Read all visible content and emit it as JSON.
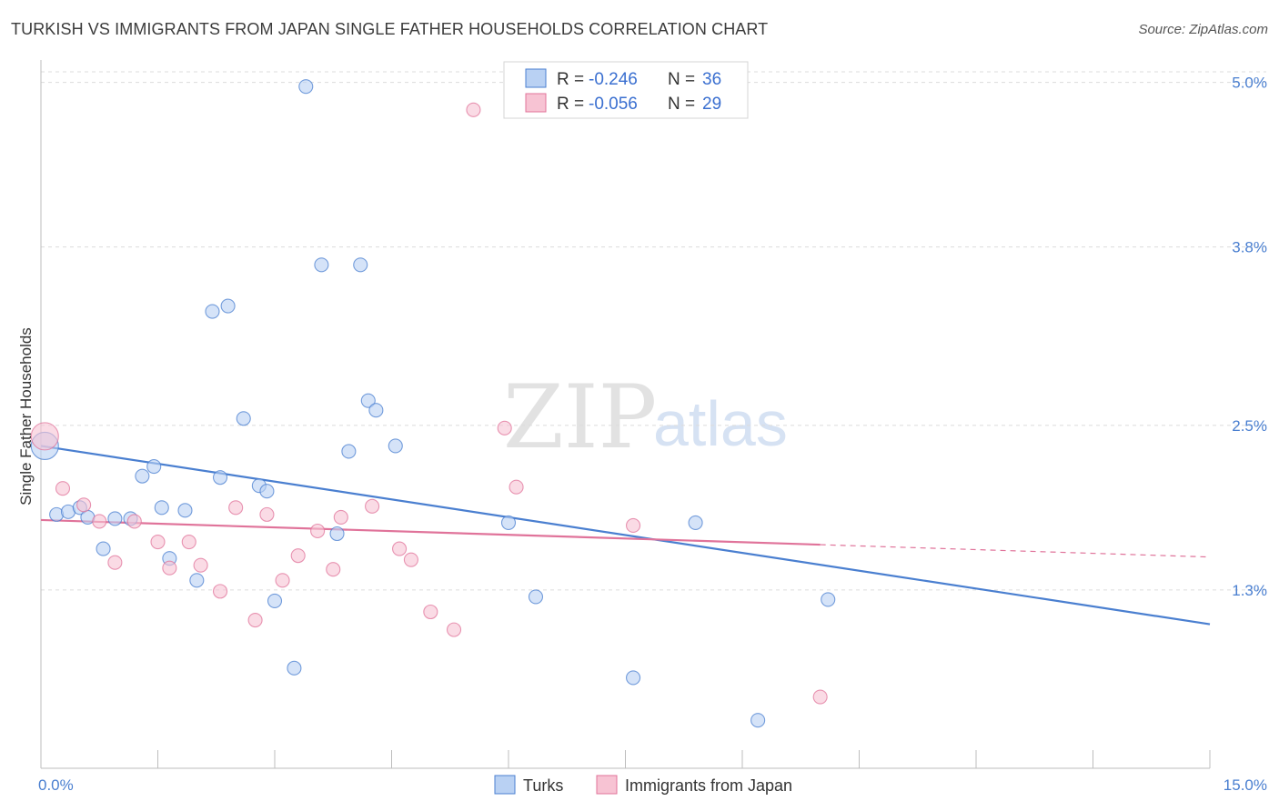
{
  "header": {
    "title": "TURKISH VS IMMIGRANTS FROM JAPAN SINGLE FATHER HOUSEHOLDS CORRELATION CHART",
    "source": "Source: ZipAtlas.com"
  },
  "watermark": {
    "zip": "ZIP",
    "atlas": "atlas"
  },
  "colors": {
    "turks": "#4a7fd0",
    "turks_fill": "#b9d1f3",
    "japan": "#e0739a",
    "japan_fill": "#f7c3d3",
    "grid": "#dcdcdc",
    "tick_label": "#4a7fd0"
  },
  "legend": {
    "r_label": "R =",
    "n_label": "N =",
    "rows": [
      {
        "series": "turks",
        "r": "-0.246",
        "n": "36"
      },
      {
        "series": "japan",
        "r": "-0.056",
        "n": "29"
      }
    ]
  },
  "chart_data": {
    "type": "scatter",
    "title": "TURKISH VS IMMIGRANTS FROM JAPAN SINGLE FATHER HOUSEHOLDS CORRELATION CHART",
    "xlabel": "",
    "ylabel": "Single Father Households",
    "xlim": [
      0,
      15
    ],
    "ylim": [
      0,
      5.15
    ],
    "x_tick_labels": [
      "0.0%",
      "15.0%"
    ],
    "y_ticks": [
      1.3,
      2.5,
      3.8,
      5.0
    ],
    "y_tick_labels": [
      "1.3%",
      "2.5%",
      "3.8%",
      "5.0%"
    ],
    "grid": true,
    "legend_position": "top-center",
    "series": [
      {
        "name": "Turks",
        "color": "#4a7fd0",
        "trend": {
          "x": [
            0.0,
            15.0
          ],
          "y": [
            2.35,
            1.05
          ]
        },
        "points": [
          {
            "x": 0.05,
            "y": 2.35,
            "big": true
          },
          {
            "x": 0.2,
            "y": 1.85
          },
          {
            "x": 0.35,
            "y": 1.87
          },
          {
            "x": 0.5,
            "y": 1.9
          },
          {
            "x": 0.6,
            "y": 1.83
          },
          {
            "x": 0.8,
            "y": 1.6
          },
          {
            "x": 0.95,
            "y": 1.82
          },
          {
            "x": 1.15,
            "y": 1.82
          },
          {
            "x": 1.3,
            "y": 2.13
          },
          {
            "x": 1.45,
            "y": 2.2
          },
          {
            "x": 1.55,
            "y": 1.9
          },
          {
            "x": 1.65,
            "y": 1.53
          },
          {
            "x": 1.85,
            "y": 1.88
          },
          {
            "x": 2.0,
            "y": 1.37
          },
          {
            "x": 2.2,
            "y": 3.33
          },
          {
            "x": 2.3,
            "y": 2.12
          },
          {
            "x": 2.4,
            "y": 3.37
          },
          {
            "x": 2.6,
            "y": 2.55
          },
          {
            "x": 2.8,
            "y": 2.06
          },
          {
            "x": 2.9,
            "y": 2.02
          },
          {
            "x": 3.0,
            "y": 1.22
          },
          {
            "x": 3.25,
            "y": 0.73
          },
          {
            "x": 3.4,
            "y": 4.97
          },
          {
            "x": 3.6,
            "y": 3.67
          },
          {
            "x": 3.8,
            "y": 1.71
          },
          {
            "x": 3.95,
            "y": 2.31
          },
          {
            "x": 4.1,
            "y": 3.67
          },
          {
            "x": 4.2,
            "y": 2.68
          },
          {
            "x": 4.3,
            "y": 2.61
          },
          {
            "x": 4.55,
            "y": 2.35
          },
          {
            "x": 6.0,
            "y": 1.79
          },
          {
            "x": 6.35,
            "y": 1.25
          },
          {
            "x": 7.6,
            "y": 0.66
          },
          {
            "x": 8.4,
            "y": 1.79
          },
          {
            "x": 9.2,
            "y": 0.35
          },
          {
            "x": 10.1,
            "y": 1.23
          }
        ]
      },
      {
        "name": "Immigrants from Japan",
        "color": "#e0739a",
        "trend": {
          "x": [
            0.0,
            10.0
          ],
          "y": [
            1.81,
            1.63
          ]
        },
        "trend_dashed": {
          "x": [
            10.0,
            15.0
          ],
          "y": [
            1.63,
            1.54
          ]
        },
        "points": [
          {
            "x": 0.05,
            "y": 2.42,
            "big": true
          },
          {
            "x": 0.28,
            "y": 2.04
          },
          {
            "x": 0.55,
            "y": 1.92
          },
          {
            "x": 0.75,
            "y": 1.8
          },
          {
            "x": 0.95,
            "y": 1.5
          },
          {
            "x": 1.2,
            "y": 1.8
          },
          {
            "x": 1.5,
            "y": 1.65
          },
          {
            "x": 1.65,
            "y": 1.46
          },
          {
            "x": 1.9,
            "y": 1.65
          },
          {
            "x": 2.05,
            "y": 1.48
          },
          {
            "x": 2.3,
            "y": 1.29
          },
          {
            "x": 2.5,
            "y": 1.9
          },
          {
            "x": 2.75,
            "y": 1.08
          },
          {
            "x": 2.9,
            "y": 1.85
          },
          {
            "x": 3.1,
            "y": 1.37
          },
          {
            "x": 3.3,
            "y": 1.55
          },
          {
            "x": 3.55,
            "y": 1.73
          },
          {
            "x": 3.75,
            "y": 1.45
          },
          {
            "x": 3.85,
            "y": 1.83
          },
          {
            "x": 4.25,
            "y": 1.91
          },
          {
            "x": 4.6,
            "y": 1.6
          },
          {
            "x": 4.75,
            "y": 1.52
          },
          {
            "x": 5.0,
            "y": 1.14
          },
          {
            "x": 5.3,
            "y": 1.01
          },
          {
            "x": 5.55,
            "y": 4.8
          },
          {
            "x": 5.95,
            "y": 2.48
          },
          {
            "x": 6.1,
            "y": 2.05
          },
          {
            "x": 7.6,
            "y": 1.77
          },
          {
            "x": 10.0,
            "y": 0.52
          }
        ]
      }
    ]
  },
  "bottom_legend": {
    "items": [
      {
        "series": "turks",
        "label": "Turks"
      },
      {
        "series": "japan",
        "label": "Immigrants from Japan"
      }
    ]
  }
}
